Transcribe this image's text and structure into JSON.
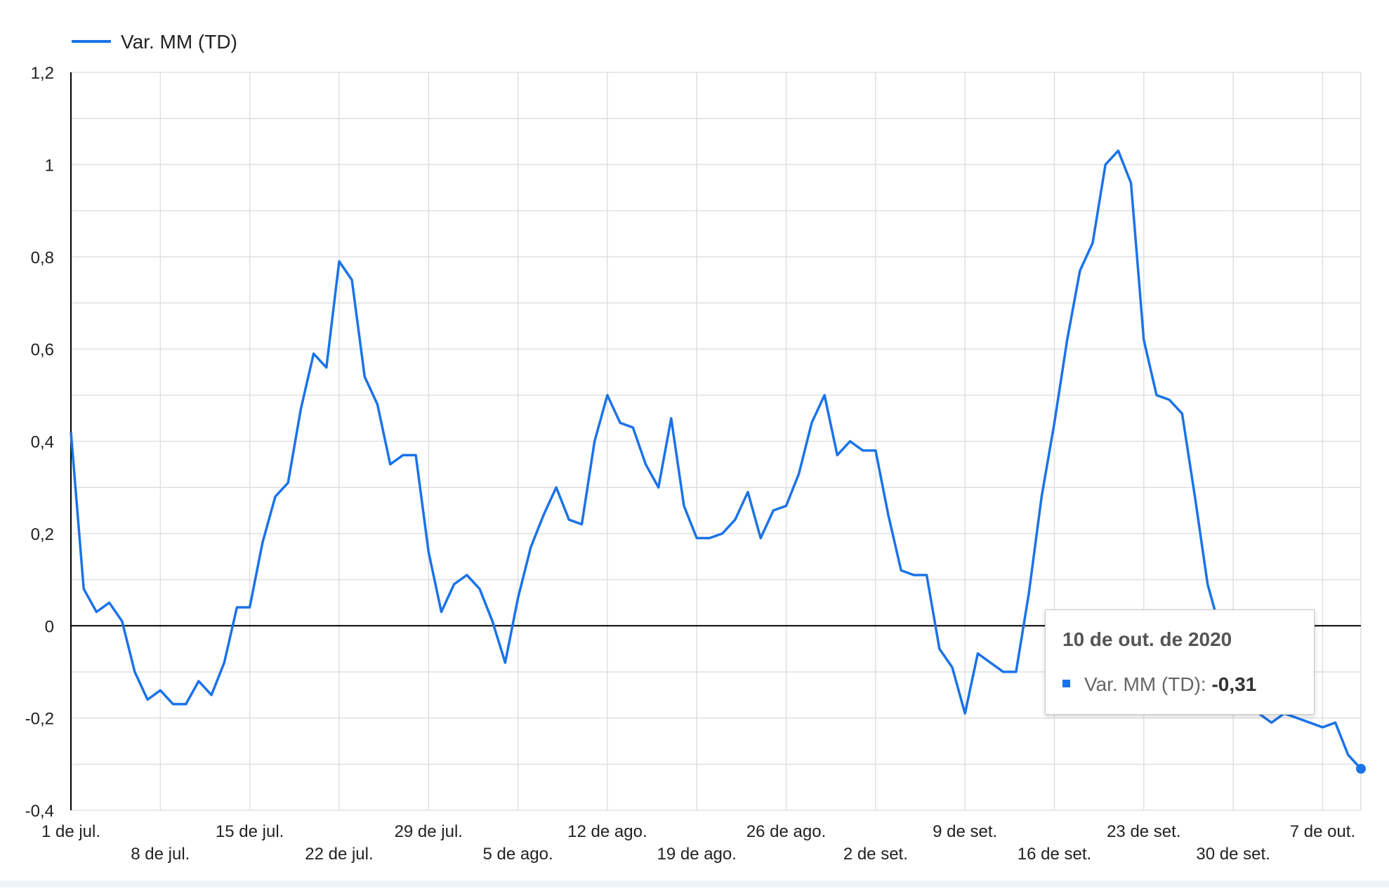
{
  "colors": {
    "series": "#1a73e8",
    "grid": "#e0e0e0",
    "axis": "#000000",
    "zero_line": "#000000"
  },
  "chart_data": {
    "type": "line",
    "title": "",
    "xlabel": "",
    "ylabel": "",
    "ylim": [
      -0.4,
      1.2
    ],
    "yticks": [
      1.2,
      1,
      0.8,
      0.6,
      0.4,
      0.2,
      0,
      -0.2,
      -0.4
    ],
    "ytick_labels": [
      "1,2",
      "1",
      "0,8",
      "0,6",
      "0,4",
      "0,2",
      "0",
      "-0,2",
      "-0,4"
    ],
    "x_start": "2020-07-01",
    "x_end": "2020-10-10",
    "xticks": [
      {
        "date": "2020-07-01",
        "label": "1 de jul."
      },
      {
        "date": "2020-07-08",
        "label": "8 de jul."
      },
      {
        "date": "2020-07-15",
        "label": "15 de jul."
      },
      {
        "date": "2020-07-22",
        "label": "22 de jul."
      },
      {
        "date": "2020-07-29",
        "label": "29 de jul."
      },
      {
        "date": "2020-08-05",
        "label": "5 de ago."
      },
      {
        "date": "2020-08-12",
        "label": "12 de ago."
      },
      {
        "date": "2020-08-19",
        "label": "19 de ago."
      },
      {
        "date": "2020-08-26",
        "label": "26 de ago."
      },
      {
        "date": "2020-09-02",
        "label": "2 de set."
      },
      {
        "date": "2020-09-09",
        "label": "9 de set."
      },
      {
        "date": "2020-09-16",
        "label": "16 de set."
      },
      {
        "date": "2020-09-23",
        "label": "23 de set."
      },
      {
        "date": "2020-09-30",
        "label": "30 de set."
      },
      {
        "date": "2020-10-07",
        "label": "7 de out."
      }
    ],
    "grid": true,
    "legend_position": "top-left",
    "series": [
      {
        "name": "Var. MM (TD)",
        "x": [
          "2020-07-01",
          "2020-07-02",
          "2020-07-03",
          "2020-07-04",
          "2020-07-05",
          "2020-07-06",
          "2020-07-07",
          "2020-07-08",
          "2020-07-09",
          "2020-07-10",
          "2020-07-11",
          "2020-07-12",
          "2020-07-13",
          "2020-07-14",
          "2020-07-15",
          "2020-07-16",
          "2020-07-17",
          "2020-07-18",
          "2020-07-19",
          "2020-07-20",
          "2020-07-21",
          "2020-07-22",
          "2020-07-23",
          "2020-07-24",
          "2020-07-25",
          "2020-07-26",
          "2020-07-27",
          "2020-07-28",
          "2020-07-29",
          "2020-07-30",
          "2020-07-31",
          "2020-08-01",
          "2020-08-02",
          "2020-08-03",
          "2020-08-04",
          "2020-08-05",
          "2020-08-06",
          "2020-08-07",
          "2020-08-08",
          "2020-08-09",
          "2020-08-10",
          "2020-08-11",
          "2020-08-12",
          "2020-08-13",
          "2020-08-14",
          "2020-08-15",
          "2020-08-16",
          "2020-08-17",
          "2020-08-18",
          "2020-08-19",
          "2020-08-20",
          "2020-08-21",
          "2020-08-22",
          "2020-08-23",
          "2020-08-24",
          "2020-08-25",
          "2020-08-26",
          "2020-08-27",
          "2020-08-28",
          "2020-08-29",
          "2020-08-30",
          "2020-08-31",
          "2020-09-01",
          "2020-09-02",
          "2020-09-03",
          "2020-09-04",
          "2020-09-05",
          "2020-09-06",
          "2020-09-07",
          "2020-09-08",
          "2020-09-09",
          "2020-09-10",
          "2020-09-11",
          "2020-09-12",
          "2020-09-13",
          "2020-09-14",
          "2020-09-15",
          "2020-09-16",
          "2020-09-17",
          "2020-09-18",
          "2020-09-19",
          "2020-09-20",
          "2020-09-21",
          "2020-09-22",
          "2020-09-23",
          "2020-09-24",
          "2020-09-25",
          "2020-09-26",
          "2020-09-27",
          "2020-09-28",
          "2020-09-29",
          "2020-09-30",
          "2020-10-01",
          "2020-10-02",
          "2020-10-03",
          "2020-10-04",
          "2020-10-05",
          "2020-10-06",
          "2020-10-07",
          "2020-10-08",
          "2020-10-09",
          "2020-10-10"
        ],
        "values": [
          0.42,
          0.08,
          0.03,
          0.05,
          0.01,
          -0.1,
          -0.16,
          -0.14,
          -0.17,
          -0.17,
          -0.12,
          -0.15,
          -0.08,
          0.04,
          0.04,
          0.18,
          0.28,
          0.31,
          0.47,
          0.59,
          0.56,
          0.79,
          0.75,
          0.54,
          0.48,
          0.35,
          0.37,
          0.37,
          0.16,
          0.03,
          0.09,
          0.11,
          0.08,
          0.01,
          -0.08,
          0.06,
          0.17,
          0.24,
          0.3,
          0.23,
          0.22,
          0.4,
          0.5,
          0.44,
          0.43,
          0.35,
          0.3,
          0.45,
          0.26,
          0.19,
          0.19,
          0.2,
          0.23,
          0.29,
          0.19,
          0.25,
          0.26,
          0.33,
          0.44,
          0.5,
          0.37,
          0.4,
          0.38,
          0.38,
          0.24,
          0.12,
          0.11,
          0.11,
          -0.05,
          -0.09,
          -0.19,
          -0.06,
          -0.08,
          -0.1,
          -0.1,
          0.07,
          0.28,
          0.44,
          0.62,
          0.77,
          0.83,
          1.0,
          1.03,
          0.96,
          0.62,
          0.5,
          0.49,
          0.46,
          0.28,
          0.09,
          -0.01,
          -0.1,
          -0.15,
          -0.19,
          -0.21,
          -0.19,
          -0.2,
          -0.21,
          -0.22,
          -0.21,
          -0.28,
          -0.31
        ]
      }
    ]
  },
  "tooltip": {
    "title": "10 de out. de 2020",
    "series_label": "Var. MM (TD):",
    "value": "-0,31"
  }
}
